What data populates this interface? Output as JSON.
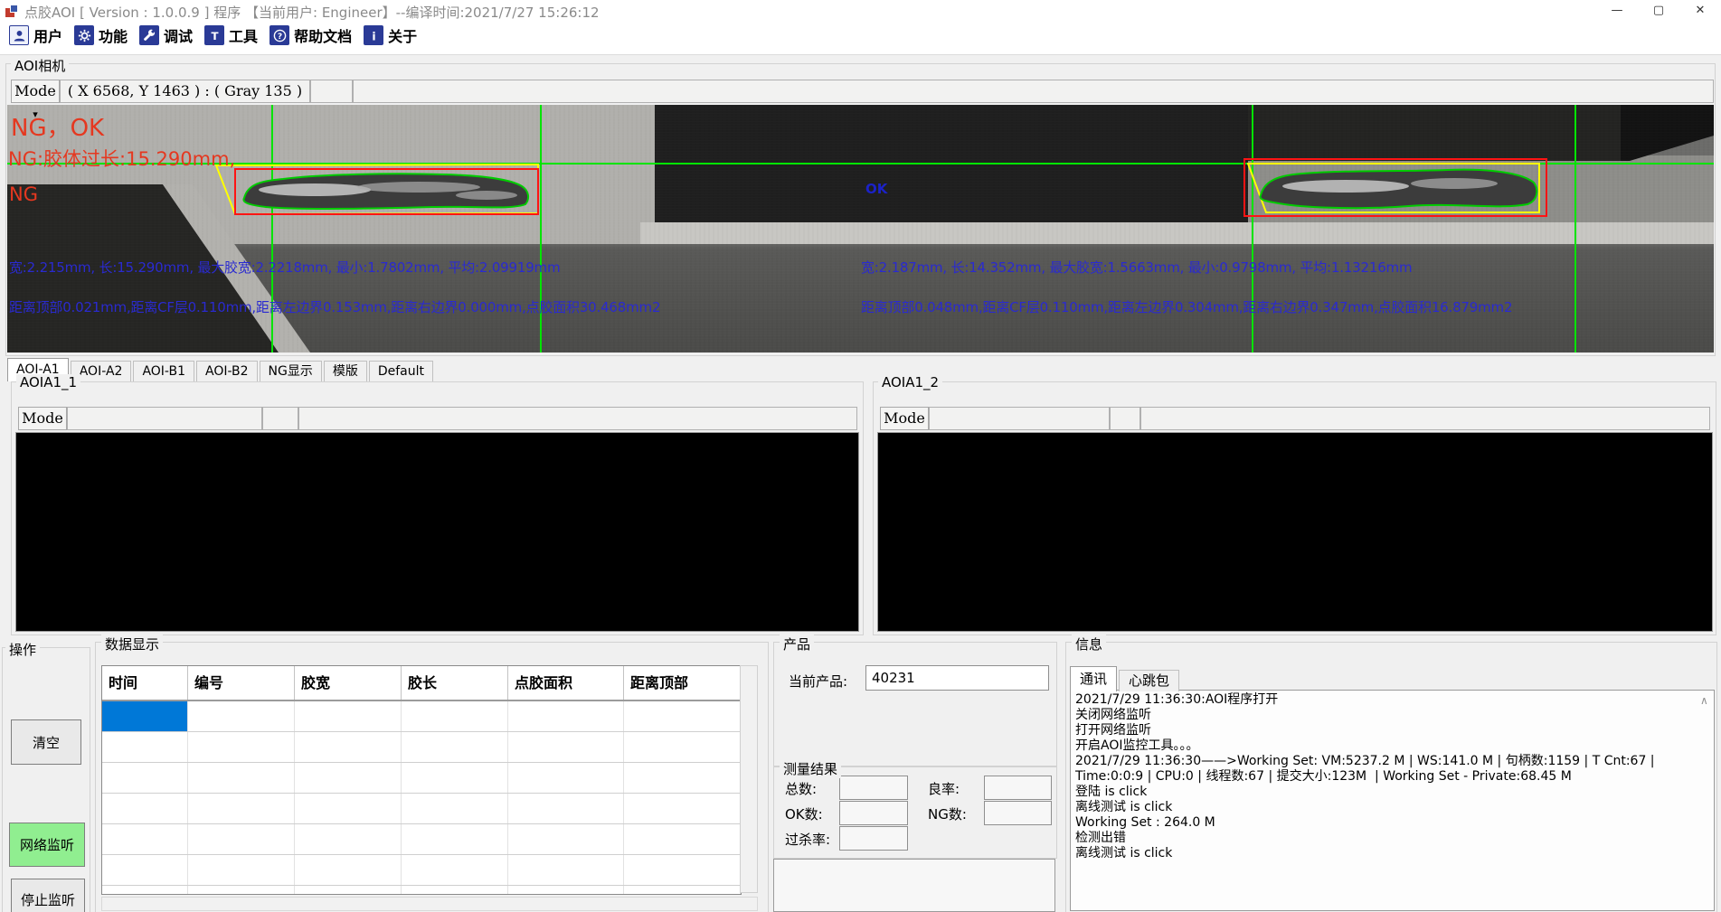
{
  "window": {
    "title": "点胶AOI [ Version : 1.0.0.9 ]  程序 【当前用户:  Engineer】--编译时间:2021/7/27 15:26:12",
    "minimize_glyph": "—",
    "maximize_glyph": "▢",
    "close_glyph": "✕"
  },
  "toolbar": {
    "items": [
      {
        "label": "用户",
        "icon": "user-icon"
      },
      {
        "label": "功能",
        "icon": "gear-icon"
      },
      {
        "label": "调试",
        "icon": "wrench-icon"
      },
      {
        "label": "工具",
        "icon": "tool-icon"
      },
      {
        "label": "帮助文档",
        "icon": "help-icon"
      },
      {
        "label": "关于",
        "icon": "about-icon"
      }
    ]
  },
  "camera_panel": {
    "group_label": "AOI相机",
    "mode_label": "Mode",
    "coordinate_readout": "( X 6568, Y 1463 ) : ( Gray 135 )",
    "overlay": {
      "status_line1": "NG，OK",
      "status_line2": "NG:胶体过长:15.290mm,",
      "status_line3": "NG",
      "center_ok": "OK",
      "left_measure_line1": "宽:2.215mm, 长:15.290mm, 最大胶宽:2.2218mm, 最小:1.7802mm, 平均:2.09919mm",
      "left_measure_line2": "距离顶部0.021mm,距离CF层0.110mm,距离左边界0.153mm,距离右边界0.000mm,点胶面积30.468mm2",
      "right_measure_line1": "宽:2.187mm, 长:14.352mm, 最大胶宽:1.5663mm, 最小:0.9798mm, 平均:1.13216mm",
      "right_measure_line2": "距离顶部0.048mm,距离CF层0.110mm,距离左边界0.304mm,距离右边界0.347mm,点胶面积16.879mm2"
    }
  },
  "tabs": {
    "items": [
      "AOI-A1",
      "AOI-A2",
      "AOI-B1",
      "AOI-B2",
      "NG显示",
      "模版",
      "Default"
    ],
    "selected_index": 0
  },
  "view_panels": [
    {
      "group_label": "AOIA1_1",
      "mode_label": "Mode"
    },
    {
      "group_label": "AOIA1_2",
      "mode_label": "Mode"
    }
  ],
  "operation_panel": {
    "group_label": "操作",
    "buttons": [
      {
        "label": "清空",
        "name": "clear-button",
        "highlight": false
      },
      {
        "label": "网络监听",
        "name": "network-listen-button",
        "highlight": true
      },
      {
        "label": "停止监听",
        "name": "stop-listen-button",
        "highlight": false
      }
    ]
  },
  "data_panel": {
    "group_label": "数据显示",
    "columns": [
      "时间",
      "编号",
      "胶宽",
      "胶长",
      "点胶面积",
      "距离顶部"
    ],
    "visible_rows": 7,
    "selected_cell": {
      "row": 0,
      "col": 0
    }
  },
  "product_panel": {
    "group_label": "产品",
    "current_product_label": "当前产品:",
    "current_product_value": "40231"
  },
  "result_panel": {
    "group_label": "测量结果",
    "rows": [
      {
        "left": "总数:",
        "right": "良率:"
      },
      {
        "left": "OK数:",
        "right": "NG数:"
      },
      {
        "left": "过杀率:",
        "right": ""
      }
    ]
  },
  "info_panel": {
    "group_label": "信息",
    "tabs": [
      "通讯",
      "心跳包"
    ],
    "selected_tab_index": 0,
    "log_lines": [
      "2021/7/29 11:36:30:AOI程序打开",
      "关闭网络监听",
      "打开网络监听",
      "开启AOI监控工具。。。",
      "2021/7/29 11:36:30——>Working Set: VM:5237.2 M | WS:141.0 M | 句柄数:1159 | T Cnt:67 |",
      "Time:0:0:9 | CPU:0 | 线程数:67 | 提交大小:123M  | Working Set - Private:68.45 M",
      "登陆 is click",
      "离线测试 is click",
      "Working Set : 264.0 M",
      "检测出错",
      "离线测试 is click"
    ]
  },
  "icons": {
    "dropdown": "▾",
    "scroll_up": "▲",
    "scroll_down": "▼",
    "scroll_left": "◀",
    "scroll_right": "▶",
    "log_scroll_up": "∧"
  },
  "colors": {
    "ng_text": "#e53820",
    "measure_text": "#2a2ad0",
    "crosshair_green": "#00e400",
    "roi_red": "#ff1414",
    "roi_yellow": "#ffff00",
    "contour_green": "#00cc00",
    "selected_cell": "#0078d7",
    "listen_button_bg": "#90ee90",
    "toolbar_icon_bg": "#2a3a96"
  }
}
